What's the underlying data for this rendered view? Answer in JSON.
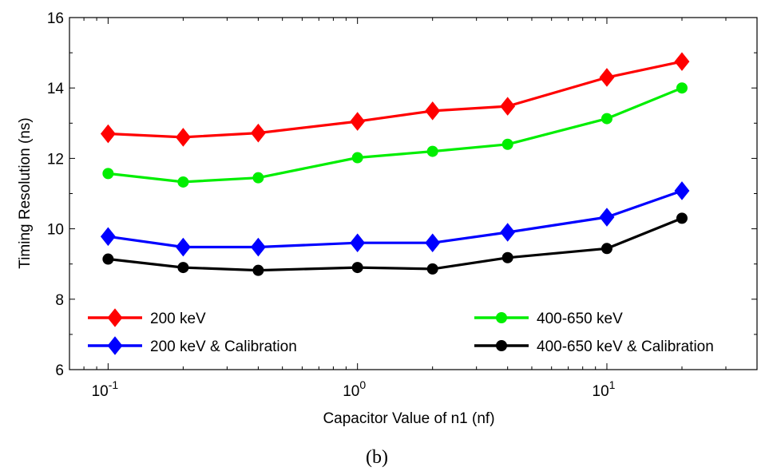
{
  "chart_data": {
    "type": "line",
    "title": "",
    "xlabel": "Capacitor Value of n1 (nf)",
    "ylabel": "Timing Resolution (ns)",
    "xscale": "log",
    "xlim": [
      0.07,
      40
    ],
    "ylim": [
      6,
      16
    ],
    "x": [
      0.1,
      0.2,
      0.4,
      1,
      2,
      4,
      10,
      20
    ],
    "xticks": [
      {
        "value": 0.1,
        "base": "10",
        "exp": "-1"
      },
      {
        "value": 1,
        "base": "10",
        "exp": "0"
      },
      {
        "value": 10,
        "base": "10",
        "exp": "1"
      }
    ],
    "yticks": [
      6,
      8,
      10,
      12,
      14,
      16
    ],
    "grid": false,
    "legend_placement": "lower",
    "series": [
      {
        "name": "200 keV",
        "color": "#ff0000",
        "marker": "diamond",
        "values": [
          12.7,
          12.6,
          12.72,
          13.05,
          13.35,
          13.48,
          14.3,
          14.75
        ]
      },
      {
        "name": "400-650 keV",
        "color": "#00ee00",
        "marker": "circle",
        "values": [
          11.57,
          11.33,
          11.45,
          12.02,
          12.2,
          12.4,
          13.13,
          14.0
        ]
      },
      {
        "name": "200 keV & Calibration",
        "color": "#0000ff",
        "marker": "diamond",
        "values": [
          9.78,
          9.48,
          9.48,
          9.6,
          9.6,
          9.9,
          10.33,
          11.08
        ]
      },
      {
        "name": "400-650 keV & Calibration",
        "color": "#000000",
        "marker": "circle",
        "values": [
          9.14,
          8.9,
          8.82,
          8.9,
          8.86,
          9.18,
          9.44,
          10.3
        ]
      }
    ]
  },
  "caption": "(b)"
}
